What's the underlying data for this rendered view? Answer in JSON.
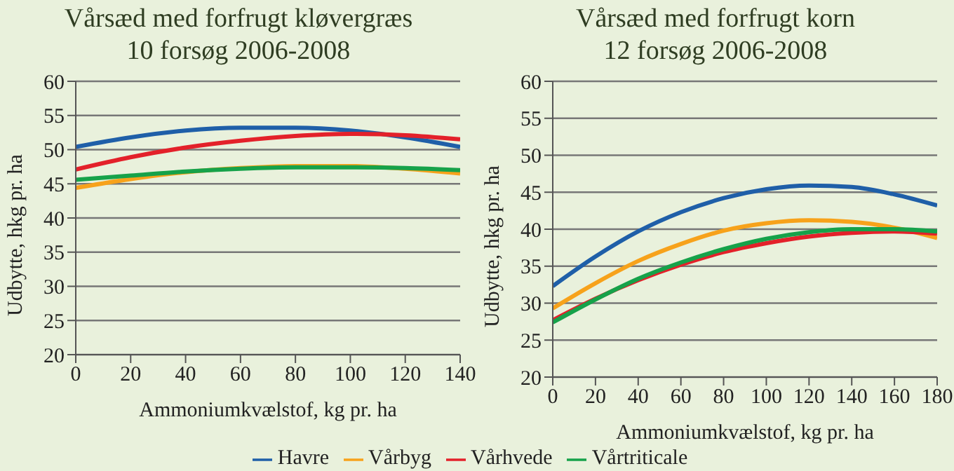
{
  "chart_data": [
    {
      "type": "line",
      "title": "Vårsæd med forfrugt kløvergræs\n10 forsøg 2006-2008",
      "xlabel": "Ammoniumkvælstof, kg pr. ha",
      "ylabel": "Udbytte, hkg pr. ha",
      "x": [
        0,
        20,
        40,
        60,
        80,
        100,
        120,
        140
      ],
      "xlim": [
        0,
        140
      ],
      "xticks": [
        0,
        20,
        40,
        60,
        80,
        100,
        120,
        140
      ],
      "ylim": [
        20,
        60
      ],
      "yticks": [
        20,
        25,
        30,
        35,
        40,
        45,
        50,
        55,
        60
      ],
      "grid": "y",
      "legend": false,
      "series": [
        {
          "color": "#1f5fa8",
          "values": [
            50.4,
            51.8,
            52.8,
            53.2,
            53.2,
            52.8,
            51.8,
            50.4
          ]
        },
        {
          "color": "#f7a21b",
          "values": [
            44.4,
            45.7,
            46.7,
            47.3,
            47.6,
            47.6,
            47.2,
            46.5
          ]
        },
        {
          "color": "#e3212a",
          "values": [
            47.1,
            48.9,
            50.3,
            51.3,
            52.0,
            52.3,
            52.1,
            51.5
          ]
        },
        {
          "color": "#16a24a",
          "values": [
            45.6,
            46.2,
            46.8,
            47.2,
            47.4,
            47.4,
            47.3,
            47.0
          ]
        }
      ]
    },
    {
      "type": "line",
      "title": "Vårsæd med forfrugt korn\n12 forsøg 2006-2008",
      "xlabel": "Ammoniumkvælstof, kg pr. ha",
      "ylabel": "Udbytte, hkg pr. ha",
      "x": [
        0,
        20,
        40,
        60,
        80,
        100,
        120,
        140,
        160,
        180
      ],
      "xlim": [
        0,
        180
      ],
      "xticks": [
        0,
        20,
        40,
        60,
        80,
        100,
        120,
        140,
        160,
        180
      ],
      "ylim": [
        20,
        60
      ],
      "yticks": [
        20,
        25,
        30,
        35,
        40,
        45,
        50,
        55,
        60
      ],
      "grid": "y",
      "legend": "bottom",
      "series": [
        {
          "name": "Havre",
          "color": "#1f5fa8",
          "values": [
            32.3,
            36.3,
            39.7,
            42.3,
            44.2,
            45.4,
            45.9,
            45.7,
            44.7,
            43.2
          ]
        },
        {
          "name": "Vårbyg",
          "color": "#f7a21b",
          "values": [
            29.3,
            32.7,
            35.7,
            38.0,
            39.8,
            40.8,
            41.2,
            41.0,
            40.2,
            38.8
          ]
        },
        {
          "name": "Vårhvede",
          "color": "#e3212a",
          "values": [
            27.7,
            30.6,
            33.1,
            35.2,
            36.9,
            38.1,
            39.0,
            39.5,
            39.7,
            39.4
          ]
        },
        {
          "name": "Vårtriticale",
          "color": "#16a24a",
          "values": [
            27.4,
            30.5,
            33.3,
            35.5,
            37.3,
            38.7,
            39.6,
            40.0,
            40.0,
            39.7
          ]
        }
      ]
    }
  ]
}
